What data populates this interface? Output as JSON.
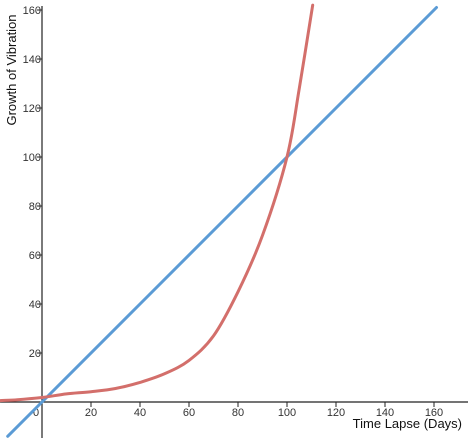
{
  "chart_data": {
    "type": "line",
    "title": "",
    "xlabel": "Time Lapse (Days)",
    "ylabel": "Growth of Vibration",
    "xlim": [
      -17,
      173
    ],
    "ylim": [
      -14,
      162
    ],
    "x_ticks": [
      0,
      20,
      40,
      60,
      80,
      100,
      120,
      140,
      160
    ],
    "x_tick_labels": [
      "0",
      "20",
      "40",
      "60",
      "80",
      "100",
      "120",
      "140",
      "160"
    ],
    "y_ticks": [
      20,
      40,
      60,
      80,
      100,
      120,
      140,
      160
    ],
    "y_tick_labels": [
      "20",
      "40",
      "60",
      "80",
      "100",
      "120",
      "140",
      "160"
    ],
    "grid": false,
    "legend": false,
    "series": [
      {
        "color": "#5b9bd5",
        "x": [
          -14,
          0,
          40,
          80,
          120,
          161
        ],
        "y": [
          -14,
          0,
          40,
          80,
          120,
          161
        ]
      },
      {
        "color": "#d36f6b",
        "x": [
          -17,
          -10,
          0,
          10,
          20,
          30,
          40,
          50,
          60,
          70,
          80,
          90,
          100,
          105,
          110.5
        ],
        "y": [
          0.58,
          0.92,
          1.85,
          3.3,
          4.2,
          5.5,
          8.0,
          11.5,
          17,
          27,
          45,
          68,
          100,
          128,
          162
        ]
      }
    ]
  }
}
